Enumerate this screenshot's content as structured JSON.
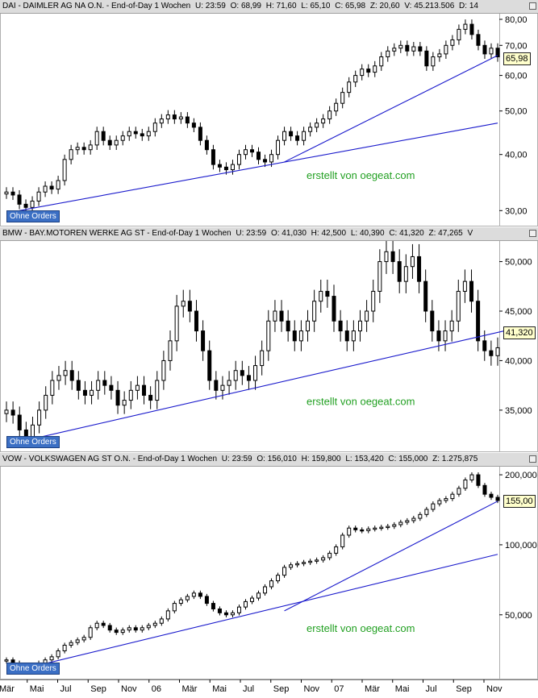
{
  "colors": {
    "candle": "#000000",
    "trendline": "#1a1acc",
    "watermark": "#22a022",
    "header_bg": "#dcdcdc",
    "badge_bg": "#3b6fc4",
    "price_tag_bg": "#ffffcc"
  },
  "watermark_text": "erstellt von oegeat.com",
  "badge_text": "Ohne Orders",
  "x_axis": {
    "labels": [
      "Mär",
      "Mai",
      "Jul",
      "Sep",
      "Nov",
      "06",
      "Mär",
      "Mai",
      "Jul",
      "Sep",
      "Nov",
      "07",
      "Mär",
      "Mai",
      "Jul",
      "Sep",
      "Nov"
    ]
  },
  "panels": [
    {
      "id": "dai",
      "header": {
        "name": "DAI - DAIMLER AG NA O.N. - End-of-Day 1 Wochen",
        "u": "U: 23:59",
        "o": "O: 68,99",
        "h": "H: 71,60",
        "l": "L: 65,10",
        "c": "C: 65,98",
        "z": "Z: 20,60",
        "v": "V: 45.213.506",
        "d": "D: 14"
      },
      "last_price_label": "65,98",
      "chart_data": {
        "type": "candlestick",
        "scale": "log",
        "ylim": [
          28,
          82
        ],
        "yticks": [
          80,
          70,
          60,
          50,
          40,
          30
        ],
        "ytick_labels": [
          "80,00",
          "70,00",
          "60,00",
          "50,00",
          "40,00",
          "30,00"
        ],
        "closes": [
          33,
          32.5,
          31,
          30.5,
          31.5,
          33,
          34,
          33.5,
          35,
          39,
          41,
          41.5,
          41,
          42,
          45,
          43,
          42,
          43,
          44,
          45,
          44.5,
          44,
          45,
          47,
          48,
          49,
          48,
          48.5,
          47,
          46,
          43,
          41,
          38,
          37.5,
          37,
          38,
          40,
          41,
          40.5,
          39,
          38.5,
          40,
          43,
          45,
          44,
          43,
          45,
          46,
          47,
          48,
          50,
          52,
          55,
          58,
          60,
          62,
          61,
          63,
          66,
          68,
          69,
          70,
          68,
          69.5,
          68,
          63,
          66,
          67,
          70,
          72,
          76,
          78,
          74,
          70,
          67,
          69,
          66
        ],
        "trendlines": [
          {
            "from": [
              2,
              30
            ],
            "to": [
              76,
              47
            ]
          },
          {
            "from": [
              43,
              38.5
            ],
            "to": [
              76,
              66.5
            ]
          }
        ]
      }
    },
    {
      "id": "bmw",
      "header": {
        "name": "BMW - BAY.MOTOREN WERKE AG ST - End-of-Day 1 Wochen",
        "u": "U: 23:59",
        "o": "O: 41,030",
        "h": "H: 42,500",
        "l": "L: 40,390",
        "c": "C: 41,320",
        "z": "Z: 47,265",
        "v": "V"
      },
      "last_price_label": "41,320",
      "chart_data": {
        "type": "candlestick",
        "scale": "linear",
        "ylim": [
          31,
          52
        ],
        "yticks": [
          50,
          45,
          40,
          35
        ],
        "ytick_labels": [
          "50,000",
          "45,000",
          "40,000",
          "35,000"
        ],
        "closes": [
          35,
          34.5,
          33,
          32,
          33.5,
          35,
          36.5,
          38,
          38.5,
          39,
          38,
          37,
          36.5,
          37,
          38,
          37.5,
          37,
          35.5,
          36,
          37,
          37.5,
          36.5,
          36,
          38,
          40,
          42,
          45.5,
          46,
          45,
          43,
          41,
          38,
          37,
          37.5,
          38,
          39,
          38.5,
          38,
          39.5,
          41,
          44,
          45,
          44,
          43,
          42,
          43,
          44,
          46,
          47,
          46.5,
          44,
          43,
          42,
          43,
          44,
          45,
          47,
          50,
          51,
          50,
          48,
          49.5,
          50.5,
          48,
          45,
          43,
          42,
          43,
          44,
          47,
          48,
          46,
          42,
          41,
          40.5,
          41.3
        ],
        "trendlines": [
          {
            "from": [
              2,
              31.8
            ],
            "to": [
              76,
              43
            ]
          }
        ]
      }
    },
    {
      "id": "vow",
      "header": {
        "name": "VOW - VOLKSWAGEN AG ST O.N. - End-of-Day 1 Wochen",
        "u": "U: 23:59",
        "o": "O: 156,010",
        "h": "H: 159,800",
        "l": "L: 153,420",
        "c": "C: 155,000",
        "z": "Z: 1.275,875"
      },
      "last_price_label": "155,00",
      "chart_data": {
        "type": "candlestick",
        "scale": "log",
        "ylim": [
          27,
          215
        ],
        "yticks": [
          200,
          100,
          50
        ],
        "ytick_labels": [
          "200,000",
          "100,000",
          "50,000"
        ],
        "closes": [
          32,
          31,
          30,
          29,
          30,
          31,
          32,
          33,
          35,
          37,
          38,
          39,
          40,
          44,
          46,
          45,
          43,
          42,
          43,
          44,
          43,
          44,
          45,
          46,
          48,
          52,
          56,
          58,
          60,
          62,
          60,
          56,
          53,
          51,
          50,
          51,
          54,
          57,
          59,
          62,
          66,
          70,
          74,
          80,
          82,
          83,
          84,
          85,
          86,
          88,
          92,
          98,
          110,
          118,
          116,
          115,
          117,
          118,
          119,
          120,
          122,
          125,
          127,
          130,
          135,
          142,
          150,
          155,
          158,
          165,
          175,
          190,
          200,
          180,
          165,
          160,
          155
        ],
        "trendlines": [
          {
            "from": [
              2,
              29
            ],
            "to": [
              76,
              91
            ]
          },
          {
            "from": [
              43,
              52
            ],
            "to": [
              76,
              154
            ]
          }
        ]
      }
    }
  ]
}
